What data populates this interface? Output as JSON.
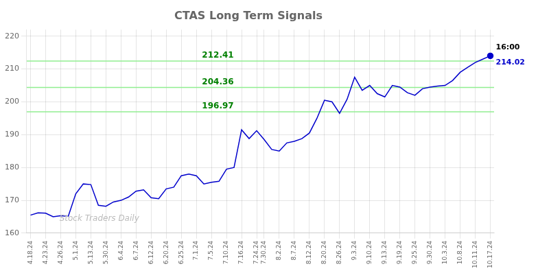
{
  "chart_data": {
    "type": "line",
    "title": "CTAS Long Term Signals",
    "categories": [
      "4.18.24",
      null,
      "4.23.24",
      null,
      "4.26.24",
      null,
      "5.1.24",
      null,
      "5.13.24",
      null,
      "5.30.24",
      null,
      "6.4.24",
      null,
      "6.7.24",
      null,
      "6.12.24",
      null,
      "6.20.24",
      null,
      "6.25.24",
      null,
      "7.1.24",
      null,
      "7.5.24",
      null,
      "7.10.24",
      null,
      "7.16.24",
      null,
      "7.24.24",
      "7.30.24",
      null,
      "8.2.24",
      null,
      "8.7.24",
      null,
      "8.12.24",
      null,
      "8.20.24",
      null,
      "8.26.24",
      null,
      "9.3.24",
      null,
      "9.10.24",
      null,
      "9.13.24",
      null,
      "9.19.24",
      null,
      "9.25.24",
      null,
      "9.30.24",
      null,
      "10.3.24",
      null,
      "10.8.24",
      null,
      "10.11.24",
      null,
      "10.17.24"
    ],
    "values": [
      165.5,
      166.2,
      166.1,
      165.0,
      165.3,
      165.1,
      172.0,
      175.0,
      174.8,
      168.5,
      168.2,
      169.5,
      170.0,
      171.0,
      172.8,
      173.2,
      170.8,
      170.5,
      173.5,
      174.0,
      177.5,
      178.0,
      177.5,
      175.0,
      175.5,
      175.8,
      179.5,
      180.0,
      191.5,
      188.8,
      191.2,
      188.5,
      185.5,
      185.0,
      187.5,
      188.0,
      188.8,
      190.5,
      195.0,
      200.5,
      200.0,
      196.5,
      200.8,
      207.5,
      203.5,
      205.0,
      202.5,
      201.5,
      205.0,
      204.5,
      202.8,
      202.0,
      204.0,
      204.5,
      204.8,
      205.0,
      206.5,
      209.0,
      210.5,
      212.0,
      213.0,
      214.02
    ],
    "color": "#0000CC",
    "ylim": [
      160,
      222
    ],
    "yticks": [
      160,
      170,
      180,
      190,
      200,
      210,
      220
    ],
    "grid": true,
    "hlines": [
      {
        "value": 196.97,
        "color": "#90EE90"
      },
      {
        "value": 204.36,
        "color": "#90EE90"
      },
      {
        "value": 212.41,
        "color": "#90EE90"
      }
    ],
    "annotations": [
      {
        "text": "16:00",
        "x": "10.17.24",
        "y": 214.02
      },
      {
        "text": "214.02",
        "x": "10.17.24",
        "y": 214.02,
        "color": "#0000CC"
      },
      {
        "text": "Stock Traders Daily",
        "color": "#bbbbbb"
      }
    ]
  }
}
